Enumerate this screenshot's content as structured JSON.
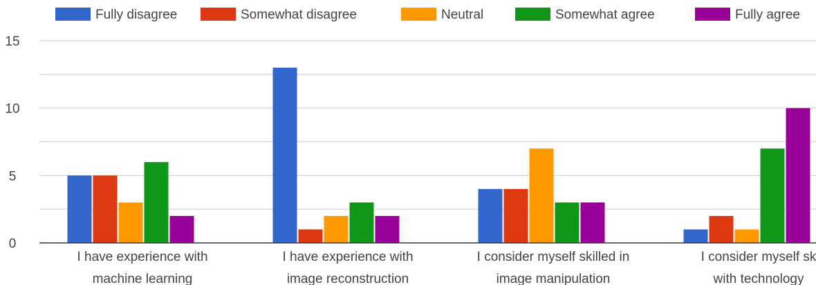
{
  "chart_data": {
    "type": "bar",
    "categories": [
      [
        "I have experience with",
        "machine learning"
      ],
      [
        "I have experience with",
        "image reconstruction"
      ],
      [
        "I consider myself skilled in",
        "image manipulation"
      ],
      [
        "I consider myself sk",
        "with technology"
      ]
    ],
    "series": [
      {
        "name": "Fully disagree",
        "color": "#3366cc",
        "values": [
          5,
          13,
          4,
          1
        ]
      },
      {
        "name": "Somewhat disagree",
        "color": "#dc3912",
        "values": [
          5,
          1,
          4,
          2
        ]
      },
      {
        "name": "Neutral",
        "color": "#ff9900",
        "values": [
          3,
          2,
          7,
          1
        ]
      },
      {
        "name": "Somewhat agree",
        "color": "#109618",
        "values": [
          6,
          3,
          3,
          7
        ]
      },
      {
        "name": "Fully agree",
        "color": "#990099",
        "values": [
          2,
          2,
          3,
          10
        ]
      }
    ],
    "yticks": [
      "0",
      "5",
      "10",
      "15"
    ],
    "ylim": [
      0,
      15
    ],
    "grid": true,
    "legend_position": "top"
  }
}
